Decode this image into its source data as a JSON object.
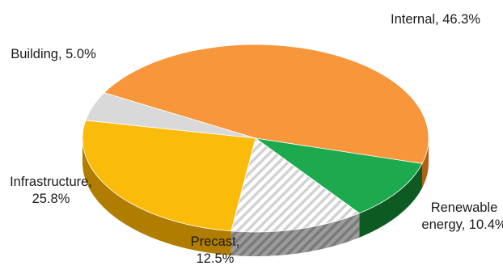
{
  "chart_data": {
    "type": "pie",
    "style": "3d",
    "title": "",
    "slices": [
      {
        "name": "Internal",
        "value": 46.3,
        "value_label": "46.3%",
        "color": "#F7963B",
        "side_color": "#B55F12",
        "label_lines": [
          "Internal, 46.3%"
        ],
        "pattern": "solid"
      },
      {
        "name": "Renewable energy",
        "value": 10.4,
        "value_label": "10.4%",
        "color": "#1DAA4E",
        "side_color": "#0D5A22",
        "label_lines": [
          "Renewable",
          "energy, 10.4%"
        ],
        "pattern": "solid"
      },
      {
        "name": "Precast",
        "value": 12.5,
        "value_label": "12.5%",
        "color": "#EDEDED",
        "side_color": "#8A8A8A",
        "label_lines": [
          "Precast,",
          "12.5%"
        ],
        "pattern": "diagonal-stripes"
      },
      {
        "name": "Infrastructure",
        "value": 25.8,
        "value_label": "25.8%",
        "color": "#FABB0B",
        "side_color": "#B07D00",
        "label_lines": [
          "Infrastructure,",
          "25.8%"
        ],
        "pattern": "solid"
      },
      {
        "name": "Building",
        "value": 5.0,
        "value_label": "5.0%",
        "color": "#D9D9D9",
        "side_color": "#8C8C8C",
        "label_lines": [
          "Building, 5.0%"
        ],
        "pattern": "solid"
      }
    ],
    "legend": "none",
    "data_labels": "category name and percentage, outside slices"
  }
}
